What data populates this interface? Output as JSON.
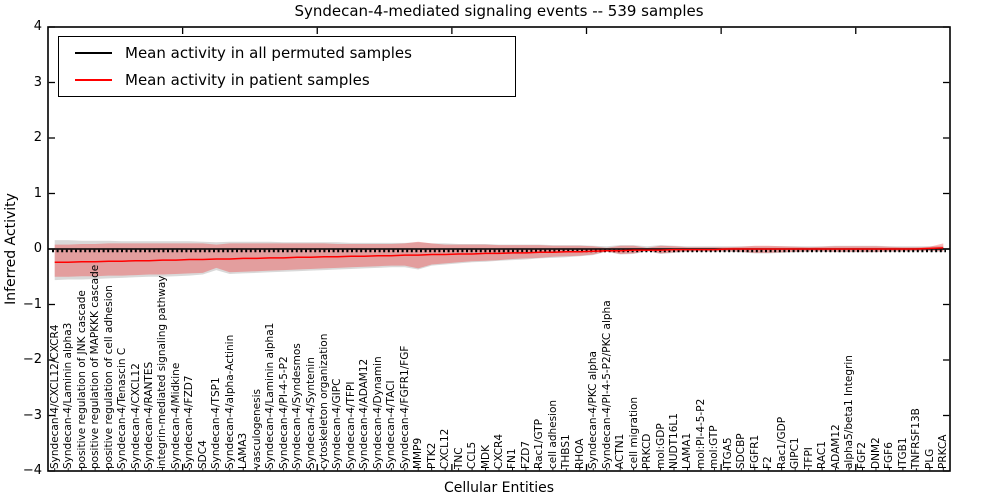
{
  "title": "Syndecan-4-mediated signaling events -- 539 samples",
  "axes": {
    "x_label": "Cellular Entities",
    "y_label": "Inferred Activity",
    "y_tick_labels": [
      "4",
      "3",
      "2",
      "1",
      "0",
      "−1",
      "−2",
      "−3",
      "−4"
    ],
    "y_tick_values": [
      4,
      3,
      2,
      1,
      0,
      -1,
      -2,
      -3,
      -4
    ]
  },
  "legend": {
    "items": [
      {
        "label": "Mean activity in all permuted samples",
        "color": "#000000"
      },
      {
        "label": "Mean activity in patient samples",
        "color": "#ff0000"
      }
    ]
  },
  "colors": {
    "patient_line": "#ff0000",
    "permuted_line": "#000000",
    "patient_band": "rgba(255,0,0,0.27)",
    "permuted_band": "rgba(128,128,128,0.30)",
    "frame": "#000000",
    "background": "#ffffff"
  },
  "chart_data": {
    "type": "line",
    "title": "Syndecan-4-mediated signaling events -- 539 samples",
    "xlabel": "Cellular Entities",
    "ylabel": "Inferred Activity",
    "ylim": [
      -4,
      4
    ],
    "yticks": [
      -4,
      -3,
      -2,
      -1,
      0,
      1,
      2,
      3,
      4
    ],
    "grid": false,
    "legend_position": "upper left",
    "categories": [
      "Syndecan-4/CXCL12/CXCR4",
      "Syndecan-4/Laminin alpha3",
      "positive regulation of JNK cascade",
      "positive regulation of MAPKKK cascade",
      "positive regulation of cell adhesion",
      "Syndecan-4/Tenascin C",
      "Syndecan-4/CXCL12",
      "Syndecan-4/RANTES",
      "integrin-mediated signaling pathway",
      "Syndecan-4/Midkine",
      "Syndecan-4/FZD7",
      "SDC4",
      "Syndecan-4/TSP1",
      "Syndecan-4/alpha-Actinin",
      "LAMA3",
      "vasculogenesis",
      "Syndecan-4/Laminin alpha1",
      "Syndecan-4/PI-4-5-P2",
      "Syndecan-4/Syndesmos",
      "Syndecan-4/Syntenin",
      "cytoskeleton organization",
      "Syndecan-4/GIPC",
      "Syndecan-4/TFPI",
      "Syndecan-4/ADAM12",
      "Syndecan-4/Dynamin",
      "Syndecan-4/TACI",
      "Syndecan-4/FGFR1/FGF",
      "MMP9",
      "PTK2",
      "CXCL12",
      "TNC",
      "CCL5",
      "MDK",
      "CXCR4",
      "FN1",
      "FZD7",
      "Rac1/GTP",
      "cell adhesion",
      "THBS1",
      "RHOA",
      "Syndecan-4/PKC alpha",
      "Syndecan-4/PI-4-5-P2/PKC alpha",
      "ACTN1",
      "cell migration",
      "PRKCD",
      "mol:GDP",
      "NUDT16L1",
      "LAMA1",
      "mol:PI-4-5-P2",
      "mol:GTP",
      "ITGA5",
      "SDCBP",
      "FGFR1",
      "F2",
      "Rac1/GDP",
      "GIPC1",
      "TFPI",
      "RAC1",
      "ADAM12",
      "alpha5/beta1 Integrin",
      "FGF2",
      "DNM2",
      "FGF6",
      "ITGB1",
      "TNFRSF13B",
      "PLG",
      "PRKCA"
    ],
    "series": [
      {
        "name": "Mean activity in all permuted samples",
        "color": "#000000",
        "style": "solid-with-tick-dashes",
        "values": [
          0,
          0,
          0,
          0,
          0,
          0,
          0,
          0,
          0,
          0,
          0,
          0,
          0,
          0,
          0,
          0,
          0,
          0,
          0,
          0,
          0,
          0,
          0,
          0,
          0,
          0,
          0,
          0,
          0,
          0,
          0,
          0,
          0,
          0,
          0,
          0,
          0,
          0,
          0,
          0,
          0,
          0,
          0,
          0,
          0,
          0,
          0,
          0,
          0,
          0,
          0,
          0,
          0,
          0,
          0,
          0,
          0,
          0,
          0,
          0,
          0,
          0,
          0,
          0,
          0,
          0,
          0
        ]
      },
      {
        "name": "Mean activity in patient samples",
        "color": "#ff0000",
        "style": "solid",
        "values": [
          -0.24,
          -0.24,
          -0.23,
          -0.23,
          -0.22,
          -0.22,
          -0.21,
          -0.21,
          -0.2,
          -0.2,
          -0.19,
          -0.19,
          -0.18,
          -0.18,
          -0.17,
          -0.17,
          -0.16,
          -0.16,
          -0.15,
          -0.15,
          -0.14,
          -0.14,
          -0.13,
          -0.13,
          -0.12,
          -0.12,
          -0.11,
          -0.11,
          -0.1,
          -0.1,
          -0.09,
          -0.09,
          -0.08,
          -0.08,
          -0.07,
          -0.07,
          -0.06,
          -0.06,
          -0.05,
          -0.05,
          -0.04,
          -0.03,
          -0.03,
          -0.02,
          -0.02,
          -0.02,
          -0.01,
          -0.01,
          -0.01,
          -0.01,
          0,
          0,
          0,
          0,
          0,
          0,
          0,
          0,
          0,
          0,
          0,
          0,
          0,
          0,
          0,
          0.01,
          0.02
        ]
      }
    ],
    "bands": [
      {
        "name": "permuted sample range",
        "color": "rgba(128,128,128,0.30)",
        "upper": [
          0.16,
          0.16,
          0.15,
          0.15,
          0.15,
          0.14,
          0.14,
          0.14,
          0.14,
          0.14,
          0.14,
          0.13,
          0.12,
          0.13,
          0.13,
          0.13,
          0.13,
          0.12,
          0.12,
          0.12,
          0.12,
          0.12,
          0.11,
          0.11,
          0.11,
          0.11,
          0.11,
          0.12,
          0.1,
          0.1,
          0.09,
          0.09,
          0.09,
          0.08,
          0.08,
          0.08,
          0.08,
          0.07,
          0.07,
          0.07,
          0.06,
          0.05,
          0.07,
          0.07,
          0.05,
          0.07,
          0.06,
          0.05,
          0.05,
          0.05,
          0.05,
          0.05,
          0.05,
          0.05,
          0.05,
          0.05,
          0.05,
          0.05,
          0.06,
          0.06,
          0.06,
          0.06,
          0.05,
          0.05,
          0.05,
          0.05,
          0.06
        ],
        "lower": [
          -0.56,
          -0.55,
          -0.55,
          -0.54,
          -0.53,
          -0.52,
          -0.51,
          -0.5,
          -0.5,
          -0.49,
          -0.48,
          -0.46,
          -0.38,
          -0.45,
          -0.44,
          -0.43,
          -0.42,
          -0.41,
          -0.4,
          -0.39,
          -0.38,
          -0.37,
          -0.36,
          -0.35,
          -0.34,
          -0.33,
          -0.33,
          -0.37,
          -0.3,
          -0.28,
          -0.26,
          -0.24,
          -0.23,
          -0.21,
          -0.2,
          -0.19,
          -0.17,
          -0.16,
          -0.15,
          -0.13,
          -0.11,
          -0.05,
          -0.1,
          -0.09,
          -0.04,
          -0.09,
          -0.07,
          -0.05,
          -0.05,
          -0.05,
          -0.05,
          -0.06,
          -0.08,
          -0.08,
          -0.07,
          -0.06,
          -0.05,
          -0.05,
          -0.06,
          -0.06,
          -0.06,
          -0.06,
          -0.05,
          -0.05,
          -0.04,
          -0.04,
          -0.05
        ]
      },
      {
        "name": "patient sample range",
        "color": "rgba(255,0,0,0.27)",
        "upper": [
          0.08,
          0.08,
          0.09,
          0.09,
          0.1,
          0.1,
          0.1,
          0.1,
          0.1,
          0.1,
          0.1,
          0.1,
          0.08,
          0.1,
          0.1,
          0.1,
          0.1,
          0.1,
          0.1,
          0.1,
          0.1,
          0.09,
          0.09,
          0.09,
          0.09,
          0.09,
          0.1,
          0.13,
          0.1,
          0.08,
          0.08,
          0.08,
          0.08,
          0.07,
          0.07,
          0.07,
          0.07,
          0.06,
          0.06,
          0.06,
          0.05,
          0.02,
          0.06,
          0.06,
          0.02,
          0.06,
          0.05,
          0.03,
          0.03,
          0.03,
          0.03,
          0.04,
          0.06,
          0.06,
          0.05,
          0.04,
          0.03,
          0.04,
          0.05,
          0.05,
          0.05,
          0.05,
          0.04,
          0.03,
          0.03,
          0.04,
          0.1
        ],
        "lower": [
          -0.5,
          -0.5,
          -0.49,
          -0.49,
          -0.48,
          -0.48,
          -0.47,
          -0.46,
          -0.46,
          -0.45,
          -0.44,
          -0.43,
          -0.34,
          -0.42,
          -0.41,
          -0.4,
          -0.39,
          -0.38,
          -0.37,
          -0.36,
          -0.35,
          -0.34,
          -0.33,
          -0.32,
          -0.31,
          -0.3,
          -0.3,
          -0.35,
          -0.28,
          -0.26,
          -0.24,
          -0.22,
          -0.21,
          -0.2,
          -0.18,
          -0.17,
          -0.16,
          -0.14,
          -0.13,
          -0.12,
          -0.1,
          -0.04,
          -0.09,
          -0.08,
          -0.03,
          -0.08,
          -0.06,
          -0.04,
          -0.04,
          -0.04,
          -0.04,
          -0.05,
          -0.07,
          -0.07,
          -0.06,
          -0.05,
          -0.04,
          -0.04,
          -0.05,
          -0.05,
          -0.05,
          -0.05,
          -0.04,
          -0.04,
          -0.03,
          -0.03,
          -0.04
        ]
      }
    ]
  }
}
